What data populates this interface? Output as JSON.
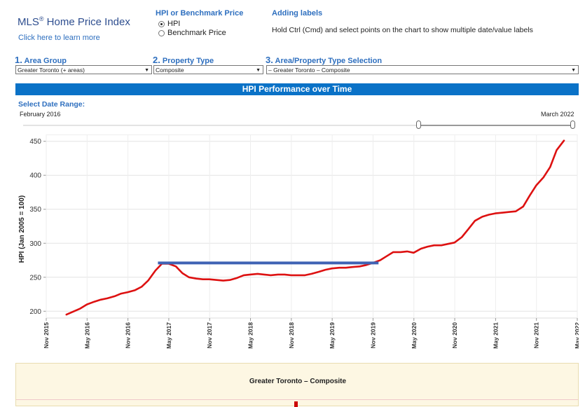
{
  "header": {
    "app_title": "MLS",
    "app_title_reg": "®",
    "app_title_rest": " Home Price Index",
    "learn_link": "Click here to learn more"
  },
  "price_mode": {
    "title": "HPI or Benchmark Price",
    "options": [
      "HPI",
      "Benchmark Price"
    ],
    "selected": "HPI"
  },
  "labels_help": {
    "title": "Adding labels",
    "text": "Hold Ctrl (Cmd) and select points on the chart to show multiple date/value labels"
  },
  "filters": [
    {
      "num": "1.",
      "label": "Area Group",
      "value": "Greater Toronto (+ areas)"
    },
    {
      "num": "2.",
      "label": "Property Type",
      "value": "Composite"
    },
    {
      "num": "3.",
      "label": "Area/Property Type Selection",
      "value": "– Greater Toronto – Composite"
    }
  ],
  "banner": "HPI Performance over Time",
  "date_range": {
    "label": "Select Date Range:",
    "start": "February 2016",
    "end": "March 2022"
  },
  "detail": {
    "title": "Greater Toronto – Composite"
  },
  "colors": {
    "accent": "#0a72c7",
    "line": "#dd1111",
    "overlay": "#3f63b4"
  },
  "chart_data": {
    "type": "line",
    "title": "HPI Performance over Time",
    "ylabel": "HPI (Jan 2005 = 100)",
    "xlabel": "",
    "ylim": [
      190,
      460
    ],
    "yticks": [
      200,
      250,
      300,
      350,
      400,
      450
    ],
    "grid": true,
    "xticks": [
      {
        "label": "Nov 2015",
        "t": 2015.833
      },
      {
        "label": "May 2016",
        "t": 2016.333
      },
      {
        "label": "Nov 2016",
        "t": 2016.833
      },
      {
        "label": "May 2017",
        "t": 2017.333
      },
      {
        "label": "Nov 2017",
        "t": 2017.833
      },
      {
        "label": "May 2018",
        "t": 2018.333
      },
      {
        "label": "Nov 2018",
        "t": 2018.833
      },
      {
        "label": "May 2019",
        "t": 2019.333
      },
      {
        "label": "Nov 2019",
        "t": 2019.833
      },
      {
        "label": "May 2020",
        "t": 2020.333
      },
      {
        "label": "Nov 2020",
        "t": 2020.833
      },
      {
        "label": "May 2021",
        "t": 2021.333
      },
      {
        "label": "Nov 2021",
        "t": 2021.833
      },
      {
        "label": "May 2022",
        "t": 2022.333
      }
    ],
    "xlim": [
      2015.833,
      2022.333
    ],
    "series": [
      {
        "name": "Greater Toronto – Composite",
        "points": [
          [
            2016.08,
            195
          ],
          [
            2016.25,
            204
          ],
          [
            2016.33,
            210
          ],
          [
            2016.42,
            214
          ],
          [
            2016.5,
            217
          ],
          [
            2016.58,
            219
          ],
          [
            2016.67,
            222
          ],
          [
            2016.75,
            226
          ],
          [
            2016.83,
            228
          ],
          [
            2016.92,
            231
          ],
          [
            2017.0,
            236
          ],
          [
            2017.08,
            245
          ],
          [
            2017.17,
            260
          ],
          [
            2017.25,
            270
          ],
          [
            2017.33,
            270
          ],
          [
            2017.42,
            266
          ],
          [
            2017.5,
            256
          ],
          [
            2017.58,
            250
          ],
          [
            2017.67,
            248
          ],
          [
            2017.75,
            247
          ],
          [
            2017.83,
            247
          ],
          [
            2017.92,
            246
          ],
          [
            2018.0,
            245
          ],
          [
            2018.08,
            246
          ],
          [
            2018.17,
            249
          ],
          [
            2018.25,
            253
          ],
          [
            2018.33,
            254
          ],
          [
            2018.42,
            255
          ],
          [
            2018.5,
            254
          ],
          [
            2018.58,
            253
          ],
          [
            2018.67,
            254
          ],
          [
            2018.75,
            254
          ],
          [
            2018.83,
            253
          ],
          [
            2018.92,
            253
          ],
          [
            2019.0,
            253
          ],
          [
            2019.08,
            255
          ],
          [
            2019.17,
            258
          ],
          [
            2019.25,
            261
          ],
          [
            2019.33,
            263
          ],
          [
            2019.42,
            264
          ],
          [
            2019.5,
            264
          ],
          [
            2019.58,
            265
          ],
          [
            2019.67,
            266
          ],
          [
            2019.75,
            268
          ],
          [
            2019.83,
            271
          ],
          [
            2019.92,
            275
          ],
          [
            2020.0,
            281
          ],
          [
            2020.08,
            287
          ],
          [
            2020.17,
            287
          ],
          [
            2020.25,
            288
          ],
          [
            2020.33,
            286
          ],
          [
            2020.42,
            292
          ],
          [
            2020.5,
            295
          ],
          [
            2020.58,
            297
          ],
          [
            2020.67,
            297
          ],
          [
            2020.75,
            299
          ],
          [
            2020.83,
            301
          ],
          [
            2020.92,
            309
          ],
          [
            2021.0,
            321
          ],
          [
            2021.08,
            333
          ],
          [
            2021.17,
            339
          ],
          [
            2021.25,
            342
          ],
          [
            2021.33,
            344
          ],
          [
            2021.42,
            345
          ],
          [
            2021.5,
            346
          ],
          [
            2021.58,
            347
          ],
          [
            2021.67,
            354
          ],
          [
            2021.75,
            370
          ],
          [
            2021.83,
            385
          ],
          [
            2021.92,
            397
          ],
          [
            2022.0,
            412
          ],
          [
            2022.08,
            437
          ],
          [
            2022.17,
            451
          ]
        ]
      }
    ],
    "annotations": [
      {
        "type": "hline",
        "y": 271,
        "x_from": 2017.2,
        "x_to": 2019.9
      }
    ]
  }
}
